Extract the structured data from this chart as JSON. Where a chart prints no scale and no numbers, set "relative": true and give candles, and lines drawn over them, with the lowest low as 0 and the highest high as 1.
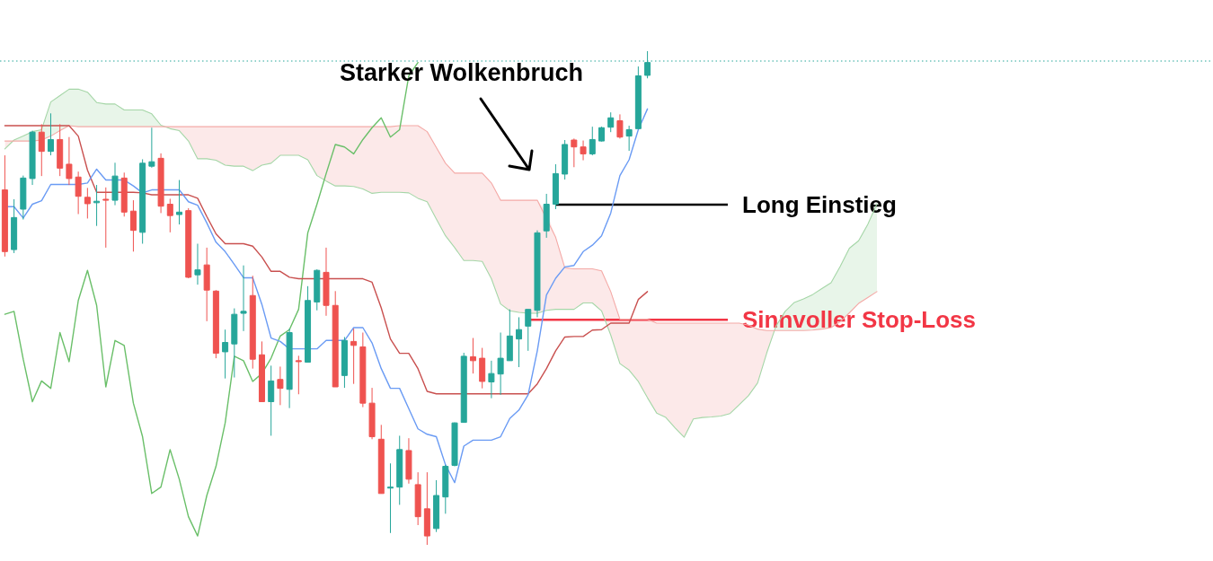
{
  "chart_data": {
    "type": "candlestick",
    "relative": true,
    "categories": [
      null,
      null,
      null,
      null,
      null,
      null,
      null,
      null,
      null,
      null,
      null,
      null,
      null,
      null,
      null,
      null,
      null,
      null,
      null,
      null,
      null,
      null,
      null,
      null,
      null,
      null,
      null,
      null,
      null,
      null,
      null,
      null,
      null,
      null,
      null,
      null,
      null,
      null,
      null,
      null,
      null,
      null,
      null,
      null,
      null,
      null,
      null,
      null,
      null,
      null,
      null,
      null,
      null,
      null,
      null,
      null,
      null,
      null,
      null,
      null,
      null,
      null,
      null,
      null,
      null,
      null,
      null,
      null,
      null,
      null,
      null,
      null,
      null,
      null,
      null,
      null,
      null,
      null,
      null,
      null,
      null,
      null,
      null,
      null,
      null,
      null,
      null,
      null,
      null,
      null,
      null,
      null,
      null,
      null,
      null,
      null
    ],
    "ohlc": [
      [
        0.719,
        0.789,
        0.584,
        0.594
      ],
      [
        0.598,
        0.7,
        0.591,
        0.663
      ],
      [
        0.68,
        0.748,
        0.659,
        0.743
      ],
      [
        0.742,
        0.839,
        0.729,
        0.836
      ],
      [
        0.836,
        0.852,
        0.747,
        0.797
      ],
      [
        0.797,
        0.874,
        0.789,
        0.821
      ],
      [
        0.821,
        0.852,
        0.747,
        0.763
      ],
      [
        0.771,
        0.826,
        0.729,
        0.742
      ],
      [
        0.745,
        0.756,
        0.67,
        0.706
      ],
      [
        0.704,
        0.723,
        0.661,
        0.691
      ],
      [
        0.693,
        0.729,
        0.646,
        0.696
      ],
      [
        0.7,
        0.724,
        0.602,
        0.698
      ],
      [
        0.698,
        0.774,
        0.688,
        0.747
      ],
      [
        0.743,
        0.754,
        0.665,
        0.674
      ],
      [
        0.676,
        0.698,
        0.594,
        0.637
      ],
      [
        0.633,
        0.781,
        0.61,
        0.773
      ],
      [
        0.767,
        0.845,
        0.764,
        0.776
      ],
      [
        0.783,
        0.793,
        0.672,
        0.686
      ],
      [
        0.69,
        0.701,
        0.633,
        0.667
      ],
      [
        0.669,
        0.739,
        0.649,
        0.674
      ],
      [
        0.677,
        0.682,
        0.54,
        0.542
      ],
      [
        0.547,
        0.61,
        0.527,
        0.557
      ],
      [
        0.567,
        0.602,
        0.453,
        0.516
      ],
      [
        0.514,
        0.516,
        0.378,
        0.388
      ],
      [
        0.391,
        0.436,
        0.337,
        0.41
      ],
      [
        0.407,
        0.479,
        0.339,
        0.467
      ],
      [
        0.469,
        0.566,
        0.433,
        0.473
      ],
      [
        0.505,
        0.545,
        0.357,
        0.376
      ],
      [
        0.385,
        0.412,
        0.29,
        0.29
      ],
      [
        0.29,
        0.363,
        0.221,
        0.332
      ],
      [
        0.335,
        0.361,
        0.283,
        0.317
      ],
      [
        0.315,
        0.438,
        0.277,
        0.43
      ],
      [
        0.373,
        0.383,
        0.305,
        0.371
      ],
      [
        0.37,
        0.524,
        0.37,
        0.495
      ],
      [
        0.492,
        0.558,
        0.475,
        0.556
      ],
      [
        0.552,
        0.602,
        0.464,
        0.485
      ],
      [
        0.485,
        0.514,
        0.32,
        0.32
      ],
      [
        0.343,
        0.421,
        0.318,
        0.414
      ],
      [
        0.412,
        0.438,
        0.326,
        0.404
      ],
      [
        0.401,
        0.43,
        0.279,
        0.287
      ],
      [
        0.287,
        0.318,
        0.214,
        0.219
      ],
      [
        0.214,
        0.243,
        0.104,
        0.104
      ],
      [
        0.115,
        0.165,
        0.024,
        0.117
      ],
      [
        0.117,
        0.221,
        0.081,
        0.193
      ],
      [
        0.191,
        0.216,
        0.124,
        0.133
      ],
      [
        0.122,
        0.147,
        0.04,
        0.057
      ],
      [
        0.073,
        0.147,
        0.0,
        0.018
      ],
      [
        0.033,
        0.131,
        0.026,
        0.1
      ],
      [
        0.097,
        0.162,
        0.063,
        0.159
      ],
      [
        0.161,
        0.248,
        0.159,
        0.247
      ],
      [
        0.248,
        0.389,
        0.248,
        0.382
      ],
      [
        0.381,
        0.419,
        0.347,
        0.373
      ],
      [
        0.378,
        0.399,
        0.317,
        0.331
      ],
      [
        0.33,
        0.373,
        0.297,
        0.347
      ],
      [
        0.346,
        0.43,
        0.304,
        0.378
      ],
      [
        0.373,
        0.477,
        0.373,
        0.423
      ],
      [
        0.417,
        0.461,
        0.36,
        0.436
      ],
      [
        0.443,
        0.477,
        0.393,
        0.477
      ],
      [
        0.475,
        0.637,
        0.461,
        0.632
      ],
      [
        0.636,
        0.711,
        0.622,
        0.69
      ],
      [
        0.69,
        0.771,
        0.68,
        0.752
      ],
      [
        0.751,
        0.82,
        0.74,
        0.811
      ],
      [
        0.82,
        0.823,
        0.765,
        0.806
      ],
      [
        0.806,
        0.819,
        0.779,
        0.792
      ],
      [
        0.792,
        0.847,
        0.789,
        0.821
      ],
      [
        0.818,
        0.847,
        0.817,
        0.845
      ],
      [
        0.846,
        0.876,
        0.836,
        0.865
      ],
      [
        0.859,
        0.872,
        0.823,
        0.826
      ],
      [
        0.828,
        0.849,
        0.798,
        0.841
      ],
      [
        0.843,
        0.969,
        0.843,
        0.95
      ],
      [
        0.951,
        1.0,
        0.945,
        0.977
      ],
      null,
      null,
      null,
      null,
      null,
      null,
      null,
      null,
      null,
      null,
      null,
      null,
      null,
      null,
      null,
      null,
      null,
      null,
      null,
      null,
      null,
      null,
      null,
      null,
      null
    ],
    "colors": [
      "#ef5350",
      "#26a69a",
      "#26a69a",
      "#26a69a",
      "#ef5350",
      "#26a69a",
      "#ef5350",
      "#ef5350",
      "#ef5350",
      "#ef5350",
      "#26a69a",
      "#ef5350",
      "#26a69a",
      "#ef5350",
      "#ef5350",
      "#26a69a",
      "#26a69a",
      "#ef5350",
      "#ef5350",
      "#26a69a",
      "#ef5350",
      "#26a69a",
      "#ef5350",
      "#ef5350",
      "#26a69a",
      "#26a69a",
      "#26a69a",
      "#ef5350",
      "#ef5350",
      "#26a69a",
      "#ef5350",
      "#26a69a",
      "#ef5350",
      "#26a69a",
      "#26a69a",
      "#ef5350",
      "#ef5350",
      "#26a69a",
      "#ef5350",
      "#ef5350",
      "#ef5350",
      "#ef5350",
      "#26a69a",
      "#26a69a",
      "#ef5350",
      "#ef5350",
      "#ef5350",
      "#26a69a",
      "#26a69a",
      "#26a69a",
      "#26a69a",
      "#ef5350",
      "#ef5350",
      "#26a69a",
      "#26a69a",
      "#26a69a",
      "#26a69a",
      "#26a69a",
      "#26a69a",
      "#26a69a",
      "#26a69a",
      "#26a69a",
      "#ef5350",
      "#ef5350",
      "#26a69a",
      "#26a69a",
      "#26a69a",
      "#ef5350",
      "#26a69a",
      "#26a69a",
      "#26a69a",
      null,
      null,
      null,
      null,
      null,
      null,
      null,
      null,
      null,
      null,
      null,
      null,
      null,
      null,
      null,
      null,
      null,
      null,
      null,
      null,
      null,
      null,
      null,
      null,
      null
    ],
    "series": [
      {
        "type": "line",
        "color": "#a5d6a7",
        "values": [
          0.802,
          0.82,
          0.828,
          0.837,
          0.841,
          0.897,
          0.91,
          0.923,
          0.923,
          0.917,
          0.896,
          0.893,
          0.893,
          0.881,
          0.881,
          0.881,
          0.873,
          0.85,
          0.843,
          0.839,
          0.818,
          0.782,
          0.782,
          0.779,
          0.769,
          0.767,
          0.767,
          0.758,
          0.769,
          0.773,
          0.789,
          0.789,
          0.789,
          0.78,
          0.748,
          0.737,
          0.727,
          0.727,
          0.726,
          0.721,
          0.712,
          0.714,
          0.714,
          0.714,
          0.713,
          0.702,
          0.695,
          0.66,
          0.626,
          0.602,
          0.576,
          0.576,
          0.574,
          0.539,
          0.488,
          0.474,
          0.471,
          0.469,
          0.469,
          0.475,
          0.477,
          0.477,
          0.477,
          0.49,
          0.49,
          0.474,
          0.425,
          0.367,
          0.354,
          0.331,
          0.298,
          0.267,
          0.258,
          0.237,
          0.218,
          0.255,
          0.258,
          0.259,
          0.261,
          0.266,
          0.284,
          0.302,
          0.328,
          0.389,
          0.443,
          0.473,
          0.491,
          0.498,
          0.507,
          0.519,
          0.531,
          0.564,
          0.601,
          0.616,
          0.649,
          0.691
        ],
        "upper": [
          0.802,
          0.82,
          0.828,
          0.837,
          0.841,
          0.897,
          0.91,
          0.923,
          0.923,
          0.917,
          0.896,
          0.893,
          0.893,
          0.881,
          0.881,
          0.881,
          0.873,
          0.85,
          0.843,
          null,
          null,
          null,
          null,
          null,
          null,
          null,
          null,
          null,
          null,
          null,
          null,
          null,
          null,
          null,
          null,
          null,
          null,
          null,
          null,
          null,
          null,
          null,
          null,
          null,
          null,
          null,
          null,
          null,
          null,
          null,
          null,
          null,
          null,
          null,
          null,
          null,
          null,
          null,
          null,
          null,
          null,
          null,
          null,
          null,
          null,
          null,
          null,
          null,
          null,
          null,
          null,
          null,
          null,
          null,
          null,
          null,
          null,
          null,
          null,
          null,
          null,
          null,
          null,
          0.389,
          0.443,
          0.473,
          0.491,
          0.498,
          0.507,
          0.519,
          0.531,
          0.564,
          0.601,
          0.616,
          0.649,
          0.691
        ],
        "lower": [
          0.818,
          0.818,
          0.818,
          0.818,
          0.82,
          0.828,
          0.839,
          0.849,
          0.847,
          0.847,
          0.847,
          0.847,
          0.847,
          0.847,
          0.847,
          0.847,
          0.847,
          0.847,
          0.847,
          null,
          null,
          null,
          null,
          null,
          null,
          null,
          null,
          null,
          null,
          null,
          null,
          null,
          null,
          null,
          null,
          null,
          null,
          null,
          null,
          null,
          null,
          null,
          null,
          null,
          null,
          null,
          null,
          null,
          null,
          null,
          null,
          null,
          null,
          null,
          null,
          null,
          null,
          null,
          null,
          null,
          null,
          null,
          null,
          null,
          null,
          null,
          null,
          null,
          null,
          null,
          null,
          null,
          null,
          null,
          null,
          null,
          null,
          null,
          null,
          null,
          null,
          null,
          null,
          0.434,
          0.434,
          0.434,
          0.434,
          0.434,
          0.435,
          0.437,
          0.44,
          0.452,
          0.47,
          0.489,
          0.501,
          0.513
        ]
      },
      {
        "type": "line",
        "color": "#f4a9a6",
        "values": [
          0.818,
          0.818,
          0.818,
          0.818,
          0.82,
          0.828,
          0.839,
          0.849,
          0.847,
          0.847,
          0.847,
          0.847,
          0.847,
          0.847,
          0.847,
          0.847,
          0.847,
          0.847,
          0.847,
          0.847,
          0.847,
          0.847,
          0.847,
          0.847,
          0.847,
          0.847,
          0.847,
          0.847,
          0.847,
          0.847,
          0.847,
          0.847,
          0.847,
          0.847,
          0.847,
          0.847,
          0.847,
          0.847,
          0.847,
          0.847,
          0.847,
          0.847,
          0.847,
          0.849,
          0.849,
          0.849,
          0.837,
          0.805,
          0.773,
          0.753,
          0.753,
          0.753,
          0.753,
          0.733,
          0.698,
          0.698,
          0.698,
          0.698,
          0.698,
          null,
          0.623,
          0.561,
          0.559,
          0.559,
          0.559,
          0.555,
          0.513,
          0.457,
          0.457,
          0.457,
          0.457,
          0.449,
          0.449,
          0.449,
          0.449,
          0.449,
          0.449,
          0.449,
          0.449,
          0.449,
          0.449,
          0.445,
          0.437,
          0.434,
          0.434,
          0.434,
          0.434,
          0.434,
          0.435,
          0.437,
          0.44,
          0.452,
          0.47,
          0.489,
          0.501,
          0.513
        ],
        "upper": [
          0.818,
          0.818,
          null,
          null,
          null,
          null,
          null,
          null,
          null,
          null,
          null,
          null,
          null,
          null,
          null,
          null,
          null,
          0.847,
          0.847,
          0.847,
          0.847,
          0.847,
          0.847,
          0.847,
          0.847,
          0.847,
          0.847,
          0.847,
          0.847,
          0.847,
          0.847,
          0.847,
          0.847,
          0.847,
          0.847,
          0.847,
          0.847,
          0.847,
          0.847,
          0.847,
          0.847,
          0.847,
          0.847,
          0.849,
          0.849,
          0.849,
          0.837,
          0.805,
          0.773,
          0.753,
          0.753,
          0.753,
          0.753,
          0.733,
          0.698,
          0.698,
          0.698,
          0.698,
          0.698,
          0.675,
          0.623,
          0.561,
          0.559,
          0.559,
          0.559,
          0.555,
          0.513,
          0.457,
          0.457,
          0.457,
          0.457,
          0.449,
          0.449,
          0.449,
          0.449,
          0.449,
          0.449,
          0.449,
          0.449,
          0.449,
          0.449,
          0.445,
          0.437,
          0.434,
          0.434,
          null,
          null,
          null,
          null,
          null,
          null,
          null,
          null,
          null,
          null,
          null
        ],
        "lower": [
          0.802,
          0.82,
          null,
          null,
          null,
          null,
          null,
          null,
          null,
          null,
          null,
          null,
          null,
          null,
          null,
          null,
          null,
          0.85,
          0.843,
          0.839,
          0.818,
          0.782,
          0.782,
          0.779,
          0.769,
          0.767,
          0.767,
          0.758,
          0.769,
          0.773,
          0.789,
          0.789,
          0.789,
          0.78,
          0.748,
          0.737,
          0.727,
          0.727,
          0.726,
          0.721,
          0.712,
          0.714,
          0.714,
          0.714,
          0.713,
          0.702,
          0.695,
          0.66,
          0.626,
          0.602,
          0.576,
          0.576,
          0.574,
          0.539,
          0.488,
          0.474,
          0.471,
          0.469,
          0.469,
          0.475,
          0.477,
          0.477,
          0.477,
          0.49,
          0.49,
          0.474,
          0.425,
          0.367,
          0.354,
          0.331,
          0.298,
          0.267,
          0.258,
          0.237,
          0.218,
          0.255,
          0.258,
          0.259,
          0.261,
          0.266,
          0.284,
          0.302,
          0.328,
          0.389,
          0.443,
          null,
          null,
          null,
          null,
          null,
          null,
          null,
          null,
          null,
          null,
          null
        ]
      },
      {
        "type": "line",
        "color": "#6abf69",
        "values": [
          0.467,
          0.473,
          0.376,
          0.29,
          0.332,
          0.317,
          0.43,
          0.371,
          0.495,
          0.556,
          0.485,
          0.32,
          0.414,
          0.404,
          0.287,
          0.219,
          0.104,
          0.117,
          0.193,
          0.133,
          0.057,
          0.018,
          0.1,
          0.159,
          0.247,
          0.382,
          0.373,
          0.331,
          0.347,
          0.378,
          0.423,
          0.436,
          0.477,
          0.632,
          0.69,
          0.752,
          0.811,
          0.806,
          0.792,
          0.821,
          0.845,
          0.865,
          0.826,
          0.841,
          0.95,
          0.977,
          null,
          null,
          null,
          null,
          null,
          null,
          null,
          null,
          null,
          null,
          null,
          null,
          null,
          null,
          null,
          null,
          null,
          null,
          null,
          null,
          null,
          null,
          null,
          null,
          null,
          null,
          null,
          null,
          null,
          null,
          null,
          null,
          null,
          null,
          null,
          null,
          null,
          null,
          null,
          null,
          null,
          null,
          null,
          null,
          null,
          null,
          null,
          null,
          null,
          null
        ]
      },
      {
        "type": "line",
        "color": "#c9504f",
        "values": [
          0.849,
          0.849,
          0.849,
          0.849,
          0.849,
          0.849,
          0.849,
          0.849,
          0.828,
          0.759,
          0.714,
          0.714,
          0.714,
          0.714,
          0.714,
          0.713,
          0.709,
          0.709,
          0.709,
          0.709,
          0.709,
          0.702,
          0.665,
          0.63,
          0.61,
          0.61,
          0.61,
          0.605,
          0.583,
          0.554,
          0.554,
          0.542,
          0.539,
          0.539,
          0.539,
          0.539,
          0.539,
          0.539,
          0.539,
          0.539,
          0.532,
          0.48,
          0.417,
          0.388,
          0.388,
          0.357,
          0.311,
          0.306,
          0.306,
          0.306,
          0.306,
          0.306,
          0.306,
          0.306,
          0.306,
          0.306,
          0.306,
          0.306,
          0.326,
          0.357,
          0.393,
          0.421,
          0.422,
          0.422,
          0.435,
          0.436,
          0.449,
          0.449,
          0.449,
          0.497,
          0.513,
          null,
          null,
          null,
          null,
          null,
          null,
          null,
          null,
          null,
          null,
          null,
          null,
          null,
          null,
          null,
          null,
          null,
          null,
          null,
          null,
          null,
          null,
          null,
          null,
          null
        ]
      },
      {
        "type": "line",
        "color": "#6a9bf4",
        "values": [
          0.685,
          0.685,
          0.662,
          0.69,
          0.697,
          0.73,
          0.73,
          0.73,
          0.73,
          0.733,
          0.761,
          0.739,
          0.739,
          0.739,
          0.727,
          0.713,
          0.719,
          0.719,
          0.719,
          0.719,
          0.695,
          0.688,
          0.652,
          0.613,
          0.594,
          0.568,
          0.541,
          0.541,
          0.487,
          0.419,
          0.412,
          0.397,
          0.397,
          0.397,
          0.397,
          0.414,
          0.414,
          0.414,
          0.44,
          0.44,
          0.409,
          0.357,
          0.317,
          0.317,
          0.276,
          0.235,
          0.224,
          0.219,
          0.162,
          0.126,
          0.2,
          0.212,
          0.212,
          0.212,
          0.219,
          0.256,
          0.273,
          0.304,
          0.393,
          0.506,
          0.54,
          0.563,
          0.566,
          0.594,
          0.607,
          0.626,
          0.672,
          0.748,
          0.78,
          0.841,
          0.883,
          null,
          null,
          null,
          null,
          null,
          null,
          null,
          null,
          null,
          null,
          null,
          null,
          null,
          null,
          null,
          null,
          null,
          null,
          null,
          null,
          null,
          null,
          null,
          null,
          null
        ]
      }
    ],
    "ref_lines": [
      {
        "axis": "y",
        "value": 0.98,
        "color": "#26a69a",
        "line_style": "dotted"
      },
      {
        "axis": "y",
        "value": 0.689,
        "label": "Long Einstieg",
        "color": "#000000"
      },
      {
        "axis": "y",
        "value": 0.456,
        "label": "Sinnvoller Stop-Loss",
        "color": "#f23645"
      }
    ],
    "annotations": [
      "Starker Wolkenbruch"
    ]
  }
}
